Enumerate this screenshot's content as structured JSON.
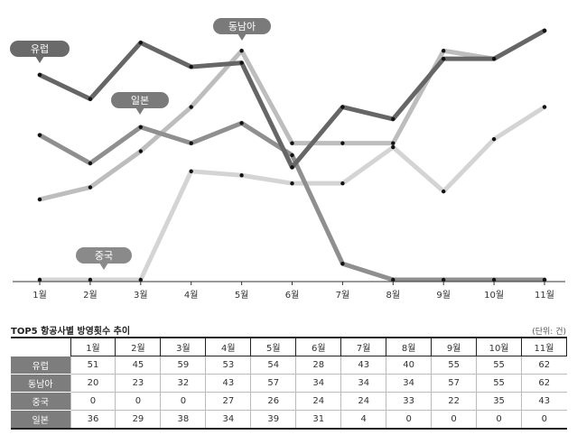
{
  "chart_data": {
    "type": "line",
    "categories": [
      "1월",
      "2월",
      "3월",
      "4월",
      "5월",
      "6월",
      "7월",
      "8월",
      "9월",
      "10월",
      "11월"
    ],
    "ylim": [
      0,
      70
    ],
    "grid": false,
    "series": [
      {
        "name": "유럽",
        "values": [
          51,
          45,
          59,
          53,
          54,
          28,
          43,
          40,
          55,
          55,
          62
        ],
        "color": "#666666",
        "label_color": "#6a6a6a"
      },
      {
        "name": "동남아",
        "values": [
          20,
          23,
          32,
          43,
          57,
          34,
          34,
          34,
          57,
          55,
          62
        ],
        "color": "#bdbdbd",
        "label_color": "#7a7a7a"
      },
      {
        "name": "중국",
        "values": [
          0,
          0,
          0,
          27,
          26,
          24,
          24,
          33,
          22,
          35,
          43
        ],
        "color": "#d4d4d4",
        "label_color": "#8a8a8a"
      },
      {
        "name": "일본",
        "values": [
          36,
          29,
          38,
          34,
          39,
          31,
          4,
          0,
          0,
          0,
          0
        ],
        "color": "#8f8f8f",
        "label_color": "#7a7a7a"
      }
    ]
  },
  "table": {
    "title": "TOP5 항공사별 방영횟수 추이",
    "unit": "(단위: 건)"
  }
}
